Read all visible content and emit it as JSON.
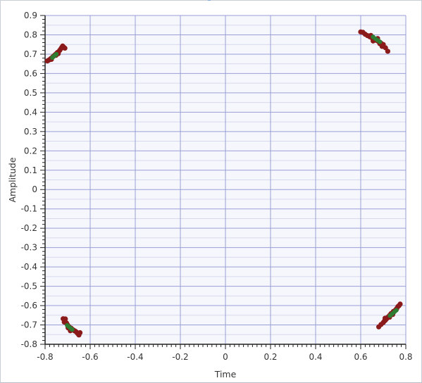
{
  "chart_data": {
    "type": "scatter",
    "title": "",
    "xlabel": "Time",
    "ylabel": "Amplitude",
    "xlim": [
      -0.8,
      0.8
    ],
    "ylim": [
      -0.8,
      0.9
    ],
    "x_ticks": [
      "-0.8",
      "-0.6",
      "-0.4",
      "-0.2",
      "0",
      "0.2",
      "0.4",
      "0.6",
      "0.8"
    ],
    "y_ticks": [
      "0.9",
      "0.8",
      "0.7",
      "0.6",
      "0.5",
      "0.4",
      "0.3",
      "0.2",
      "0.1",
      "0",
      "-0.1",
      "-0.2",
      "-0.3",
      "-0.4",
      "-0.5",
      "-0.6",
      "-0.7",
      "-0.8"
    ],
    "grid": true,
    "colors": {
      "plot_background": "#f6f7fc",
      "grid_major": "#9a9ed6",
      "grid_minor": "#d6d9ee",
      "axis": "#222222",
      "series_1": "#8b1a1a",
      "series_2": "#2e7d32"
    },
    "series": [
      {
        "values": [
          [
            -0.79,
            0.665
          ],
          [
            -0.785,
            0.668
          ],
          [
            -0.78,
            0.672
          ],
          [
            -0.775,
            0.677
          ],
          [
            -0.77,
            0.681
          ],
          [
            -0.765,
            0.687
          ],
          [
            -0.76,
            0.692
          ],
          [
            -0.755,
            0.698
          ],
          [
            -0.75,
            0.703
          ],
          [
            -0.745,
            0.709
          ],
          [
            -0.74,
            0.712
          ],
          [
            -0.735,
            0.72
          ],
          [
            -0.73,
            0.728
          ],
          [
            -0.726,
            0.735
          ],
          [
            -0.722,
            0.742
          ],
          [
            -0.718,
            0.737
          ],
          [
            -0.712,
            0.731
          ],
          [
            -0.772,
            0.673
          ],
          [
            -0.752,
            0.694
          ],
          [
            -0.742,
            0.702
          ],
          [
            0.6,
            0.815
          ],
          [
            0.61,
            0.813
          ],
          [
            0.62,
            0.803
          ],
          [
            0.63,
            0.796
          ],
          [
            0.64,
            0.79
          ],
          [
            0.65,
            0.784
          ],
          [
            0.66,
            0.777
          ],
          [
            0.67,
            0.771
          ],
          [
            0.68,
            0.764
          ],
          [
            0.69,
            0.757
          ],
          [
            0.7,
            0.75
          ],
          [
            0.71,
            0.733
          ],
          [
            0.72,
            0.715
          ],
          [
            0.655,
            0.768
          ],
          [
            0.675,
            0.781
          ],
          [
            0.645,
            0.797
          ],
          [
            0.685,
            0.754
          ],
          [
            0.695,
            0.74
          ],
          [
            -0.72,
            -0.668
          ],
          [
            -0.71,
            -0.669
          ],
          [
            -0.715,
            -0.685
          ],
          [
            -0.705,
            -0.69
          ],
          [
            -0.7,
            -0.7
          ],
          [
            -0.695,
            -0.708
          ],
          [
            -0.69,
            -0.715
          ],
          [
            -0.685,
            -0.716
          ],
          [
            -0.68,
            -0.722
          ],
          [
            -0.675,
            -0.726
          ],
          [
            -0.67,
            -0.73
          ],
          [
            -0.665,
            -0.733
          ],
          [
            -0.66,
            -0.738
          ],
          [
            -0.655,
            -0.745
          ],
          [
            -0.65,
            -0.752
          ],
          [
            -0.645,
            -0.74
          ],
          [
            -0.688,
            -0.73
          ],
          [
            -0.698,
            -0.715
          ],
          [
            0.68,
            -0.71
          ],
          [
            0.69,
            -0.698
          ],
          [
            0.7,
            -0.688
          ],
          [
            0.705,
            -0.68
          ],
          [
            0.71,
            -0.675
          ],
          [
            0.715,
            -0.668
          ],
          [
            0.72,
            -0.66
          ],
          [
            0.725,
            -0.655
          ],
          [
            0.73,
            -0.648
          ],
          [
            0.735,
            -0.641
          ],
          [
            0.74,
            -0.638
          ],
          [
            0.745,
            -0.63
          ],
          [
            0.75,
            -0.628
          ],
          [
            0.755,
            -0.622
          ],
          [
            0.76,
            -0.615
          ],
          [
            0.765,
            -0.605
          ],
          [
            0.77,
            -0.6
          ],
          [
            0.775,
            -0.592
          ],
          [
            0.708,
            -0.665
          ],
          [
            0.728,
            -0.66
          ],
          [
            0.742,
            -0.646
          ]
        ]
      },
      {
        "values": [
          [
            -0.768,
            0.682
          ],
          [
            -0.762,
            0.688
          ],
          [
            -0.756,
            0.694
          ],
          [
            -0.75,
            0.7
          ],
          [
            0.655,
            0.789
          ],
          [
            0.665,
            0.78
          ],
          [
            0.675,
            0.772
          ],
          [
            0.685,
            0.764
          ],
          [
            -0.702,
            -0.702
          ],
          [
            -0.694,
            -0.71
          ],
          [
            -0.686,
            -0.718
          ],
          [
            -0.68,
            -0.724
          ],
          [
            0.73,
            -0.652
          ],
          [
            0.74,
            -0.642
          ],
          [
            0.75,
            -0.632
          ],
          [
            0.758,
            -0.624
          ]
        ]
      }
    ]
  }
}
